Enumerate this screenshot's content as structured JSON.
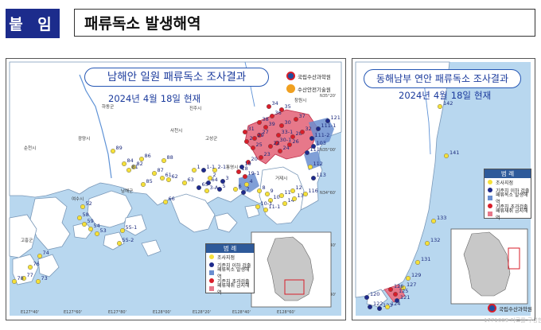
{
  "header": {
    "label": "붙 임",
    "title": "패류독소 발생해역"
  },
  "left_map": {
    "title": "남해안 일원 패류독소 조사결과",
    "date": {
      "year": "2024년",
      "month": "4월",
      "day": "18일",
      "status": "현재"
    },
    "logos": [
      "국립수산과학원",
      "수산안전기술원"
    ],
    "lat_labels": [
      "N35°20'",
      "N35°00'",
      "N34°60'",
      "N34°40'",
      "N34°40'"
    ],
    "lon_labels": [
      "E127°40'",
      "E127°60'",
      "E127°80'",
      "E128°00'",
      "E128°20'",
      "E128°40'",
      "E128°60'"
    ],
    "region_labels": [
      "하동군",
      "진주시",
      "광양시",
      "사천시",
      "순천시",
      "고성군",
      "창원시",
      "남해군",
      "여수시",
      "통영시",
      "거제시",
      "고흥군"
    ],
    "legend": {
      "title": "범 례",
      "items": [
        {
          "label": "조사지점",
          "color": "#f5e03a"
        },
        {
          "label": "기준치 이하 검출",
          "color": "#1e2a8c"
        },
        {
          "label": "패류독소 발생해역",
          "color": "#6a8ed0"
        },
        {
          "label": "기준치 초과검출",
          "color": "#d81e2a"
        },
        {
          "label": "패류채취 금지해역",
          "color": "#e7788a"
        }
      ]
    },
    "station_labels": [
      "34",
      "35",
      "36",
      "37",
      "121",
      "38",
      "39",
      "30",
      "33-1",
      "28",
      "31",
      "32",
      "30-1",
      "111-1",
      "111-2",
      "27",
      "22",
      "24",
      "25",
      "26",
      "21",
      "23",
      "29",
      "20",
      "103",
      "111",
      "19",
      "18",
      "19-1",
      "89",
      "86",
      "84",
      "82",
      "88",
      "81",
      "87",
      "85",
      "1",
      "2-1",
      "3",
      "5",
      "6",
      "4",
      "7",
      "8",
      "9",
      "10",
      "11",
      "12",
      "14",
      "13",
      "10-1",
      "11-1",
      "61",
      "62",
      "63",
      "65",
      "64",
      "1-1",
      "2",
      "3-A",
      "66",
      "112",
      "113",
      "116",
      "52",
      "58",
      "59",
      "54",
      "53",
      "55-1",
      "55-2",
      "74",
      "76",
      "77",
      "78",
      "73"
    ]
  },
  "right_map": {
    "title": "동해남부 연안 패류독소 조사결과",
    "date": {
      "year": "2024년",
      "month": "4월",
      "day": "18일",
      "status": "현재"
    },
    "legend": {
      "title": "범 례",
      "items": [
        {
          "label": "조사지점",
          "color": "#f5e03a"
        },
        {
          "label": "기준치 이하 검출",
          "color": "#1e2a8c"
        },
        {
          "label": "패류독소 발생해역",
          "color": "#6a8ed0"
        },
        {
          "label": "기준치 초과검출",
          "color": "#d81e2a"
        },
        {
          "label": "패류채취 금지해역",
          "color": "#e7788a"
        }
      ]
    },
    "logo": "국립수산과학원",
    "station_labels": [
      "142",
      "141",
      "133",
      "132",
      "131",
      "129",
      "127",
      "125",
      "126",
      "120",
      "122",
      "123",
      "124",
      "121"
    ]
  },
  "watermark": "1771009 자료를 구성한으로"
}
